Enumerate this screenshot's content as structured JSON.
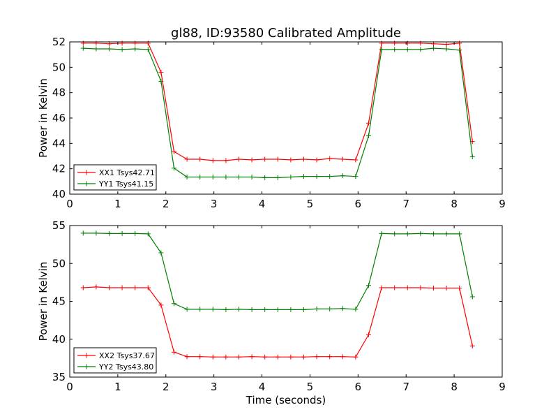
{
  "chart_data": [
    {
      "type": "line",
      "title": "gl88, ID:93580 Calibrated Amplitude",
      "xlabel": "",
      "ylabel": "Power in Kelvin",
      "xlim": [
        0,
        9
      ],
      "ylim": [
        40,
        52
      ],
      "xticks": [
        "0",
        "1",
        "2",
        "3",
        "4",
        "5",
        "6",
        "7",
        "8",
        "9"
      ],
      "yticks": [
        "40",
        "42",
        "44",
        "46",
        "48",
        "50",
        "52"
      ],
      "legend_position": "lower-left",
      "grid": false,
      "x": [
        0.28,
        0.55,
        0.82,
        1.09,
        1.36,
        1.63,
        1.9,
        2.17,
        2.44,
        2.71,
        2.98,
        3.25,
        3.52,
        3.79,
        4.06,
        4.33,
        4.6,
        4.87,
        5.14,
        5.41,
        5.68,
        5.95,
        6.22,
        6.49,
        6.76,
        7.03,
        7.3,
        7.57,
        7.84,
        8.11,
        8.38
      ],
      "series": [
        {
          "name": "XX1 Tsys42.71",
          "color": "#ff0000",
          "values": [
            51.9,
            51.9,
            51.85,
            51.9,
            51.9,
            51.9,
            49.6,
            43.35,
            42.75,
            42.75,
            42.65,
            42.65,
            42.75,
            42.7,
            42.75,
            42.75,
            42.7,
            42.75,
            42.7,
            42.8,
            42.75,
            42.7,
            45.6,
            51.9,
            51.9,
            51.9,
            51.9,
            51.85,
            51.8,
            51.9,
            44.15
          ]
        },
        {
          "name": "YY1 Tsys41.15",
          "color": "#008000",
          "values": [
            51.5,
            51.45,
            51.45,
            51.4,
            51.45,
            51.4,
            48.9,
            42.05,
            41.35,
            41.35,
            41.35,
            41.35,
            41.35,
            41.35,
            41.3,
            41.3,
            41.35,
            41.4,
            41.4,
            41.4,
            41.45,
            41.4,
            44.6,
            51.4,
            51.4,
            51.4,
            51.4,
            51.5,
            51.45,
            51.35,
            42.95
          ]
        }
      ]
    },
    {
      "type": "line",
      "title": "",
      "xlabel": "Time (seconds)",
      "ylabel": "Power in Kelvin",
      "xlim": [
        0,
        9
      ],
      "ylim": [
        35,
        55
      ],
      "xticks": [
        "0",
        "1",
        "2",
        "3",
        "4",
        "5",
        "6",
        "7",
        "8",
        "9"
      ],
      "yticks": [
        "35",
        "40",
        "45",
        "50",
        "55"
      ],
      "legend_position": "lower-left",
      "grid": false,
      "x": [
        0.28,
        0.55,
        0.82,
        1.09,
        1.36,
        1.63,
        1.9,
        2.17,
        2.44,
        2.71,
        2.98,
        3.25,
        3.52,
        3.79,
        4.06,
        4.33,
        4.6,
        4.87,
        5.14,
        5.41,
        5.68,
        5.95,
        6.22,
        6.49,
        6.76,
        7.03,
        7.3,
        7.57,
        7.84,
        8.11,
        8.38
      ],
      "series": [
        {
          "name": "XX2 Tsys37.67",
          "color": "#ff0000",
          "values": [
            46.8,
            46.9,
            46.8,
            46.8,
            46.8,
            46.8,
            44.5,
            38.3,
            37.7,
            37.7,
            37.65,
            37.65,
            37.65,
            37.7,
            37.65,
            37.65,
            37.65,
            37.65,
            37.7,
            37.7,
            37.7,
            37.65,
            40.6,
            46.8,
            46.8,
            46.8,
            46.8,
            46.75,
            46.75,
            46.75,
            39.1
          ]
        },
        {
          "name": "YY2 Tsys43.80",
          "color": "#008000",
          "values": [
            54.0,
            54.0,
            53.95,
            53.95,
            53.95,
            53.9,
            51.4,
            44.7,
            43.95,
            43.95,
            43.95,
            43.9,
            43.95,
            43.9,
            43.9,
            43.9,
            43.9,
            43.9,
            44.0,
            44.0,
            44.05,
            43.95,
            47.1,
            53.95,
            53.9,
            53.9,
            53.95,
            53.9,
            53.9,
            53.9,
            45.6
          ]
        }
      ]
    }
  ]
}
